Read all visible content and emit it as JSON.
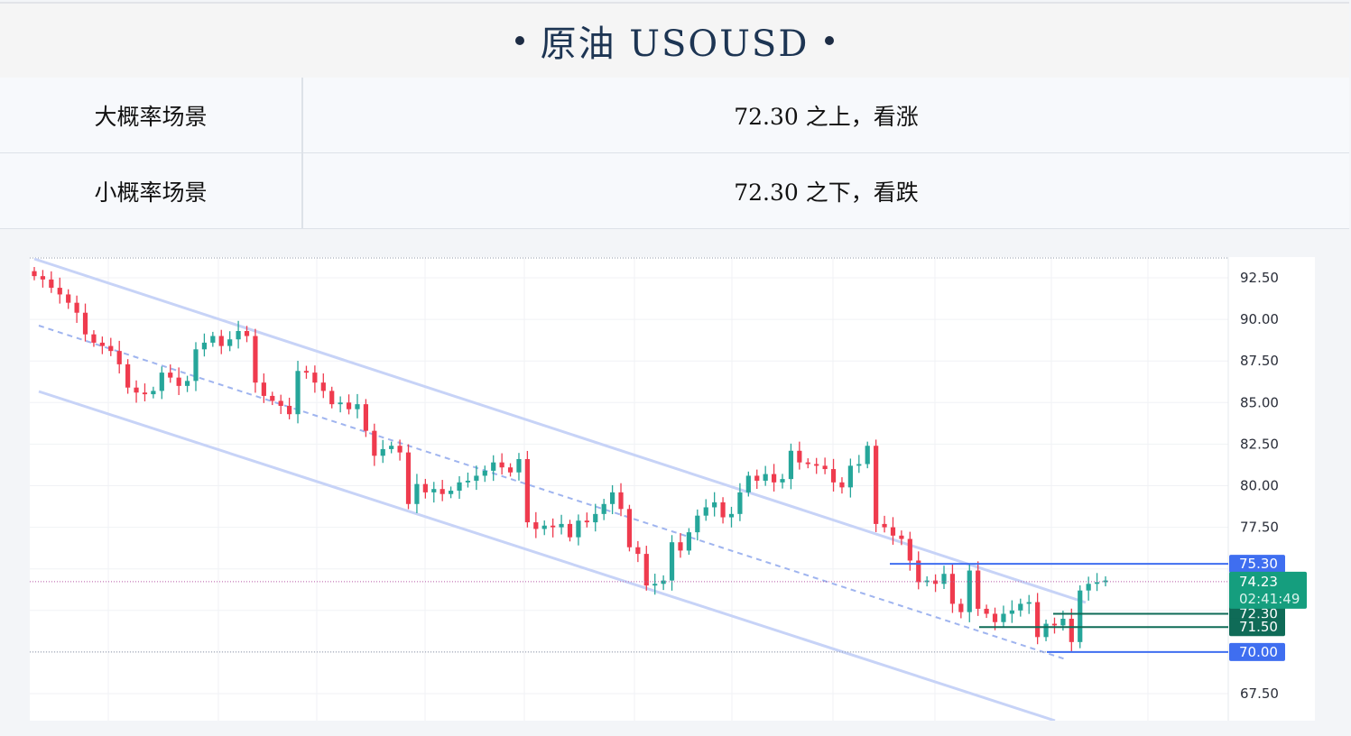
{
  "header": {
    "title": "原油  USOUSD"
  },
  "scenarios": [
    {
      "label": "大概率场景",
      "value": "72.30 之上，看涨"
    },
    {
      "label": "小概率场景",
      "value": "72.30 之下，看跌"
    }
  ],
  "colors": {
    "up": "#26a69a",
    "down": "#ef3b4e",
    "channel": "#c7d3f7",
    "mid_channel": "#9fb4ef",
    "blue_level": "#3f6ef0",
    "green_level": "#0f6b57",
    "current_price": "#159e7e"
  },
  "chart_data": {
    "type": "candlestick",
    "symbol": "USOUSD",
    "ylim": [
      66,
      93.5
    ],
    "y_ticks": [
      "92.50",
      "90.00",
      "87.50",
      "85.00",
      "82.50",
      "80.00",
      "77.50",
      "67.50"
    ],
    "current_price": {
      "value": 74.23,
      "label": "74.23",
      "countdown": "02:41:49"
    },
    "levels": [
      {
        "value": 75.3,
        "label": "75.30",
        "style": "blue"
      },
      {
        "value": 72.3,
        "label": "72.30",
        "style": "green"
      },
      {
        "value": 71.5,
        "label": "71.50",
        "style": "green"
      },
      {
        "value": 70.0,
        "label": "70.00",
        "style": "blue"
      }
    ],
    "closes": [
      92.6,
      92.4,
      91.9,
      91.5,
      91.0,
      90.4,
      89.1,
      88.6,
      88.4,
      88.1,
      87.3,
      85.9,
      85.6,
      85.5,
      85.7,
      86.8,
      86.5,
      86.0,
      86.3,
      88.2,
      88.6,
      89.0,
      88.4,
      88.8,
      89.3,
      89.0,
      86.2,
      85.4,
      85.1,
      84.8,
      84.3,
      86.9,
      86.8,
      86.2,
      85.7,
      84.9,
      85.0,
      84.6,
      84.9,
      83.3,
      81.8,
      82.2,
      82.4,
      82.0,
      78.9,
      80.1,
      79.6,
      79.8,
      79.5,
      79.7,
      80.2,
      80.3,
      80.6,
      80.9,
      81.4,
      81.1,
      80.8,
      81.6,
      77.8,
      77.4,
      77.6,
      77.5,
      77.7,
      76.9,
      77.9,
      77.8,
      78.3,
      78.9,
      79.6,
      78.6,
      76.3,
      75.9,
      74.0,
      74.1,
      74.3,
      76.6,
      76.1,
      77.2,
      78.2,
      78.7,
      79.0,
      78.1,
      78.3,
      79.6,
      80.6,
      80.3,
      80.7,
      80.2,
      80.4,
      82.1,
      81.4,
      81.3,
      81.2,
      81.0,
      80.2,
      79.9,
      81.2,
      81.3,
      82.4,
      77.7,
      77.5,
      77.0,
      76.8,
      75.5,
      74.2,
      74.3,
      74.1,
      74.7,
      72.9,
      72.4,
      74.9,
      72.6,
      72.3,
      71.8,
      72.3,
      72.5,
      72.9,
      73.0,
      70.9,
      71.7,
      71.6,
      72.0,
      70.6,
      73.7,
      74.1,
      74.2,
      74.3
    ],
    "earlier_anchor_open": 92.9
  }
}
